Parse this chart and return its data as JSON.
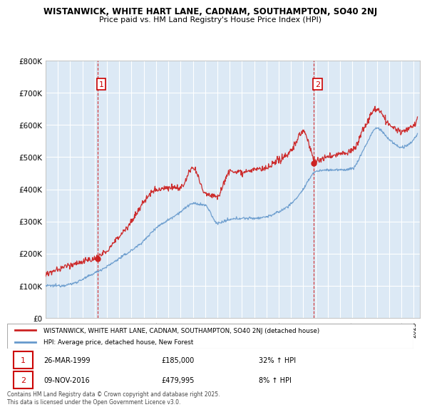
{
  "title1": "WISTANWICK, WHITE HART LANE, CADNAM, SOUTHAMPTON, SO40 2NJ",
  "title2": "Price paid vs. HM Land Registry's House Price Index (HPI)",
  "background_color": "#ffffff",
  "plot_bg_color": "#dce9f5",
  "grid_color": "#ffffff",
  "line1_color": "#cc2222",
  "line2_color": "#6699cc",
  "sale1_x": 1999.23,
  "sale1_price": 185000,
  "sale2_x": 2016.87,
  "sale2_price": 479995,
  "legend_line1": "WISTANWICK, WHITE HART LANE, CADNAM, SOUTHAMPTON, SO40 2NJ (detached house)",
  "legend_line2": "HPI: Average price, detached house, New Forest",
  "footer": "Contains HM Land Registry data © Crown copyright and database right 2025.\nThis data is licensed under the Open Government Licence v3.0.",
  "ylim_max": 800000,
  "ylim_min": 0,
  "xlim_min": 1995,
  "xlim_max": 2025.5,
  "hpi_x": [
    1995,
    1996,
    1997,
    1998,
    1999,
    2000,
    2001,
    2002,
    2003,
    2004,
    2005,
    2006,
    2007,
    2008,
    2009,
    2010,
    2011,
    2012,
    2013,
    2014,
    2015,
    2016,
    2017,
    2018,
    2019,
    2020,
    2021,
    2022,
    2023,
    2024,
    2025
  ],
  "hpi_y": [
    100000,
    100500,
    105000,
    120000,
    140000,
    160000,
    185000,
    210000,
    240000,
    280000,
    305000,
    330000,
    355000,
    350000,
    295000,
    305000,
    310000,
    310000,
    315000,
    330000,
    355000,
    400000,
    455000,
    460000,
    460000,
    465000,
    530000,
    590000,
    555000,
    530000,
    555000
  ],
  "red_x": [
    1995,
    1996,
    1997,
    1998,
    1999,
    2000,
    2001,
    2002,
    2003,
    2004,
    2005,
    2006,
    2007,
    2008,
    2009,
    2010,
    2011,
    2012,
    2013,
    2014,
    2015,
    2016,
    2017,
    2018,
    2019,
    2020,
    2021,
    2022,
    2023,
    2024,
    2025
  ],
  "red_y": [
    135000,
    150000,
    165000,
    175000,
    185000,
    210000,
    255000,
    300000,
    360000,
    400000,
    405000,
    405000,
    465000,
    390000,
    380000,
    455000,
    455000,
    460000,
    465000,
    490000,
    520000,
    580000,
    490000,
    500000,
    510000,
    520000,
    595000,
    650000,
    600000,
    580000,
    600000
  ]
}
